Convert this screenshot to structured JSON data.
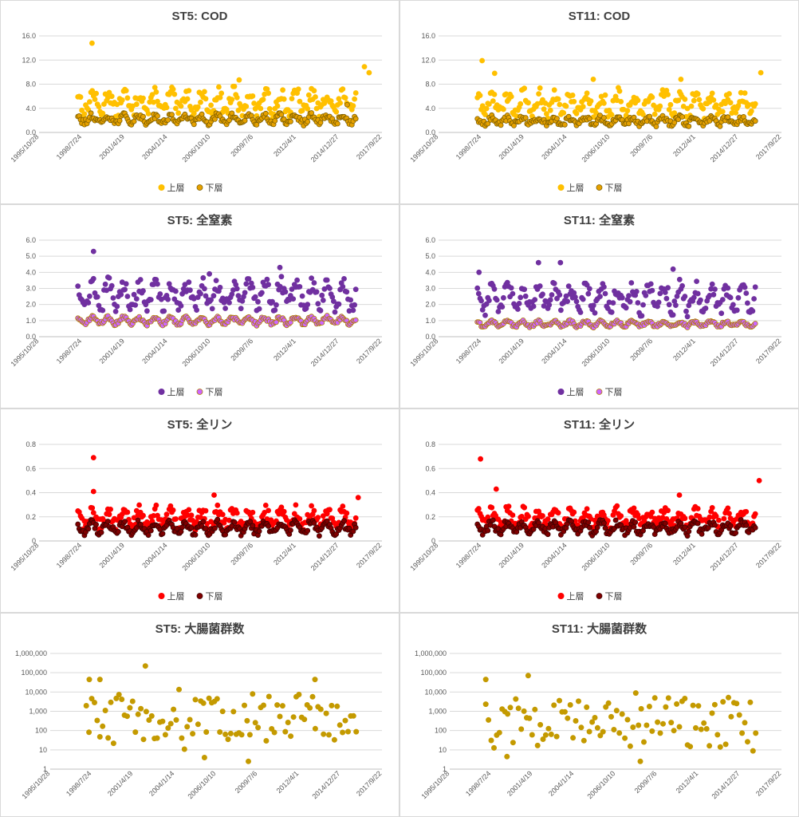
{
  "x_tick_labels": [
    "1995/10/28",
    "1998/7/24",
    "2001/4/19",
    "2004/1/14",
    "2006/10/10",
    "2009/7/6",
    "2012/4/1",
    "2014/12/27",
    "2017/9/22"
  ],
  "legend": {
    "upper": "上層",
    "lower": "下層"
  },
  "chart_data": [
    {
      "id": "st5-cod",
      "type": "scatter",
      "title": "ST5: COD",
      "ylim": [
        0,
        16
      ],
      "y_ticks": [
        "0.0",
        "4.0",
        "8.0",
        "12.0",
        "16.0"
      ],
      "upper_color": "#FFC000",
      "lower_color": "#E6A100",
      "lower_edge": "#7F6000",
      "upper": {
        "base": 5.0,
        "amp": 1.6,
        "noise": 1.2,
        "outliers": [
          [
            1999.2,
            14.8
          ],
          [
            2016.6,
            10.9
          ],
          [
            2016.9,
            9.9
          ],
          [
            2008.6,
            8.7
          ]
        ]
      },
      "lower": {
        "base": 2.2,
        "amp": 0.6,
        "noise": 0.5,
        "outliers": [
          [
            2015.5,
            4.6
          ]
        ]
      }
    },
    {
      "id": "st11-cod",
      "type": "scatter",
      "title": "ST11: COD",
      "ylim": [
        0,
        16
      ],
      "y_ticks": [
        "0.0",
        "4.0",
        "8.0",
        "12.0",
        "16.0"
      ],
      "upper_color": "#FFC000",
      "lower_color": "#E6A100",
      "lower_edge": "#7F6000",
      "upper": {
        "base": 4.8,
        "amp": 1.5,
        "noise": 1.2,
        "outliers": [
          [
            1998.6,
            11.9
          ],
          [
            1999.4,
            9.8
          ],
          [
            2016.4,
            9.9
          ],
          [
            2011.3,
            8.8
          ],
          [
            2005.7,
            8.8
          ]
        ]
      },
      "lower": {
        "base": 1.9,
        "amp": 0.5,
        "noise": 0.5,
        "outliers": []
      }
    },
    {
      "id": "st5-tn",
      "type": "scatter",
      "title": "ST5: 全窒素",
      "ylim": [
        0,
        6
      ],
      "y_ticks": [
        "0.0",
        "1.0",
        "2.0",
        "3.0",
        "4.0",
        "5.0",
        "6.0"
      ],
      "upper_color": "#7030A0",
      "lower_color": "#CC66FF",
      "lower_edge": "#B07F00",
      "upper": {
        "base": 2.6,
        "amp": 0.7,
        "noise": 0.5,
        "outliers": [
          [
            1999.3,
            5.3
          ],
          [
            2011.2,
            4.3
          ],
          [
            2006.7,
            3.9
          ]
        ]
      },
      "lower": {
        "base": 1.0,
        "amp": 0.2,
        "noise": 0.12,
        "outliers": []
      }
    },
    {
      "id": "st11-tn",
      "type": "scatter",
      "title": "ST11: 全窒素",
      "ylim": [
        0,
        6
      ],
      "y_ticks": [
        "0.0",
        "1.0",
        "2.0",
        "3.0",
        "4.0",
        "5.0",
        "6.0"
      ],
      "upper_color": "#7030A0",
      "lower_color": "#CC66FF",
      "lower_edge": "#B07F00",
      "upper": {
        "base": 2.4,
        "amp": 0.7,
        "noise": 0.5,
        "outliers": [
          [
            2002.2,
            4.6
          ],
          [
            2003.6,
            4.6
          ],
          [
            2010.8,
            4.2
          ],
          [
            1998.4,
            4.0
          ]
        ]
      },
      "lower": {
        "base": 0.8,
        "amp": 0.15,
        "noise": 0.1,
        "outliers": []
      }
    },
    {
      "id": "st5-tp",
      "type": "scatter",
      "title": "ST5: 全リン",
      "ylim": [
        0,
        0.8
      ],
      "y_ticks": [
        "0",
        "0.2",
        "0.4",
        "0.6",
        "0.8"
      ],
      "upper_color": "#FF0000",
      "lower_color": "#7F0000",
      "lower_edge": "#3F0000",
      "upper": {
        "base": 0.19,
        "amp": 0.06,
        "noise": 0.05,
        "outliers": [
          [
            1999.3,
            0.69
          ],
          [
            1999.3,
            0.41
          ],
          [
            2007.0,
            0.38
          ],
          [
            2016.2,
            0.36
          ]
        ]
      },
      "lower": {
        "base": 0.11,
        "amp": 0.04,
        "noise": 0.03,
        "outliers": []
      }
    },
    {
      "id": "st11-tp",
      "type": "scatter",
      "title": "ST11: 全リン",
      "ylim": [
        0,
        0.8
      ],
      "y_ticks": [
        "0",
        "0.2",
        "0.4",
        "0.6",
        "0.8"
      ],
      "upper_color": "#FF0000",
      "lower_color": "#7F0000",
      "lower_edge": "#3F0000",
      "upper": {
        "base": 0.19,
        "amp": 0.06,
        "noise": 0.05,
        "outliers": [
          [
            1998.5,
            0.68
          ],
          [
            2016.3,
            0.5
          ],
          [
            1999.5,
            0.43
          ],
          [
            2011.2,
            0.38
          ]
        ]
      },
      "lower": {
        "base": 0.11,
        "amp": 0.04,
        "noise": 0.03,
        "outliers": []
      }
    },
    {
      "id": "st5-ecoli",
      "type": "scatter-log",
      "title": "ST5: 大腸菌群数",
      "y_ticks": [
        "1",
        "10",
        "100",
        "1,000",
        "10,000",
        "100,000",
        "1,000,000"
      ],
      "color": "#C49A00",
      "center": 2.6,
      "spread": 1.3,
      "outliers": [
        [
          2002.1,
          5.35
        ],
        [
          1998.4,
          4.65
        ],
        [
          1999.1,
          4.65
        ],
        [
          2013.3,
          4.65
        ],
        [
          2008.9,
          0.4
        ],
        [
          2006.0,
          0.6
        ]
      ]
    },
    {
      "id": "st11-ecoli",
      "type": "scatter-log",
      "title": "ST11: 大腸菌群数",
      "y_ticks": [
        "1",
        "10",
        "100",
        "1,000",
        "10,000",
        "100,000",
        "1,000,000"
      ],
      "color": "#C49A00",
      "center": 2.5,
      "spread": 1.3,
      "outliers": [
        [
          2001.0,
          4.85
        ],
        [
          1998.2,
          4.65
        ],
        [
          2008.4,
          0.4
        ],
        [
          1999.6,
          0.65
        ]
      ]
    }
  ]
}
